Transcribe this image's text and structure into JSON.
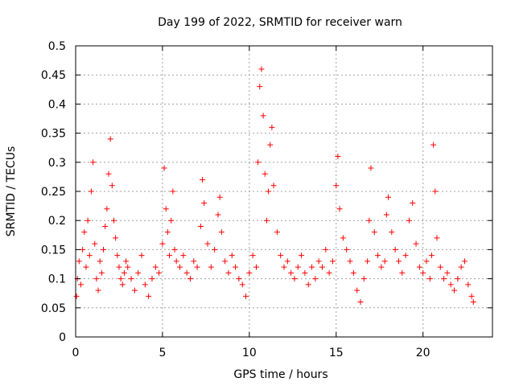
{
  "chart_data": {
    "type": "scatter",
    "title": "Day 199 of 2022, SRMTID for receiver warn",
    "xlabel": "GPS time / hours",
    "ylabel": "SRMTID / TECUs",
    "xlim": [
      0,
      24
    ],
    "ylim": [
      0,
      0.5
    ],
    "x_ticks": [
      0,
      5,
      10,
      15,
      20
    ],
    "x_tick_labels": [
      "0",
      "5",
      "10",
      "15",
      "20"
    ],
    "y_ticks": [
      0,
      0.05,
      0.1,
      0.15,
      0.2,
      0.25,
      0.3,
      0.35,
      0.4,
      0.45,
      0.5
    ],
    "y_tick_labels": [
      "0",
      "0.05",
      "0.1",
      "0.15",
      "0.2",
      "0.25",
      "0.3",
      "0.35",
      "0.4",
      "0.45",
      "0.5"
    ],
    "grid": true,
    "marker": "plus",
    "marker_color": "#ff0000",
    "x_range_data": [
      0,
      22.9
    ],
    "series": [
      {
        "name": "SRMTID",
        "x": [
          0.05,
          0.1,
          0.2,
          0.3,
          0.4,
          0.5,
          0.6,
          0.7,
          0.8,
          0.9,
          1.0,
          1.1,
          1.2,
          1.3,
          1.4,
          1.5,
          1.6,
          1.7,
          1.8,
          1.9,
          2.0,
          2.1,
          2.2,
          2.3,
          2.4,
          2.5,
          2.6,
          2.7,
          2.8,
          2.9,
          3.0,
          3.2,
          3.4,
          3.6,
          3.8,
          4.0,
          4.2,
          4.4,
          4.6,
          4.8,
          5.0,
          5.1,
          5.2,
          5.3,
          5.4,
          5.5,
          5.6,
          5.7,
          5.8,
          6.0,
          6.2,
          6.4,
          6.6,
          6.8,
          7.0,
          7.2,
          7.3,
          7.4,
          7.6,
          7.8,
          8.0,
          8.2,
          8.3,
          8.4,
          8.6,
          8.8,
          9.0,
          9.2,
          9.4,
          9.6,
          9.8,
          10.0,
          10.2,
          10.4,
          10.5,
          10.6,
          10.7,
          10.8,
          10.9,
          11.0,
          11.1,
          11.2,
          11.3,
          11.4,
          11.6,
          11.8,
          12.0,
          12.2,
          12.4,
          12.6,
          12.8,
          13.0,
          13.2,
          13.4,
          13.6,
          13.8,
          14.0,
          14.2,
          14.4,
          14.6,
          14.8,
          15.0,
          15.1,
          15.2,
          15.4,
          15.6,
          15.8,
          16.0,
          16.2,
          16.4,
          16.6,
          16.8,
          16.9,
          17.0,
          17.2,
          17.4,
          17.6,
          17.8,
          17.9,
          18.0,
          18.2,
          18.4,
          18.6,
          18.8,
          19.0,
          19.2,
          19.4,
          19.6,
          19.8,
          20.0,
          20.2,
          20.4,
          20.5,
          20.6,
          20.7,
          20.8,
          21.0,
          21.2,
          21.4,
          21.6,
          21.8,
          22.0,
          22.2,
          22.4,
          22.6,
          22.8,
          22.9
        ],
        "y": [
          0.07,
          0.1,
          0.13,
          0.09,
          0.15,
          0.18,
          0.12,
          0.2,
          0.14,
          0.25,
          0.3,
          0.16,
          0.1,
          0.08,
          0.13,
          0.11,
          0.15,
          0.19,
          0.22,
          0.28,
          0.34,
          0.26,
          0.2,
          0.17,
          0.14,
          0.12,
          0.1,
          0.09,
          0.11,
          0.13,
          0.12,
          0.1,
          0.08,
          0.11,
          0.14,
          0.09,
          0.07,
          0.1,
          0.12,
          0.11,
          0.16,
          0.29,
          0.22,
          0.18,
          0.14,
          0.2,
          0.25,
          0.15,
          0.13,
          0.12,
          0.14,
          0.11,
          0.1,
          0.13,
          0.12,
          0.19,
          0.27,
          0.23,
          0.16,
          0.12,
          0.15,
          0.21,
          0.24,
          0.18,
          0.13,
          0.11,
          0.14,
          0.12,
          0.1,
          0.09,
          0.07,
          0.11,
          0.14,
          0.12,
          0.3,
          0.43,
          0.46,
          0.38,
          0.28,
          0.2,
          0.25,
          0.33,
          0.36,
          0.26,
          0.18,
          0.14,
          0.12,
          0.13,
          0.11,
          0.1,
          0.12,
          0.14,
          0.11,
          0.09,
          0.12,
          0.1,
          0.13,
          0.12,
          0.15,
          0.11,
          0.13,
          0.26,
          0.31,
          0.22,
          0.17,
          0.15,
          0.13,
          0.11,
          0.08,
          0.06,
          0.1,
          0.13,
          0.2,
          0.29,
          0.18,
          0.14,
          0.12,
          0.13,
          0.21,
          0.24,
          0.18,
          0.15,
          0.13,
          0.11,
          0.14,
          0.2,
          0.23,
          0.16,
          0.12,
          0.11,
          0.13,
          0.1,
          0.14,
          0.33,
          0.25,
          0.17,
          0.12,
          0.1,
          0.11,
          0.09,
          0.08,
          0.1,
          0.12,
          0.13,
          0.09,
          0.07,
          0.06
        ]
      }
    ]
  }
}
